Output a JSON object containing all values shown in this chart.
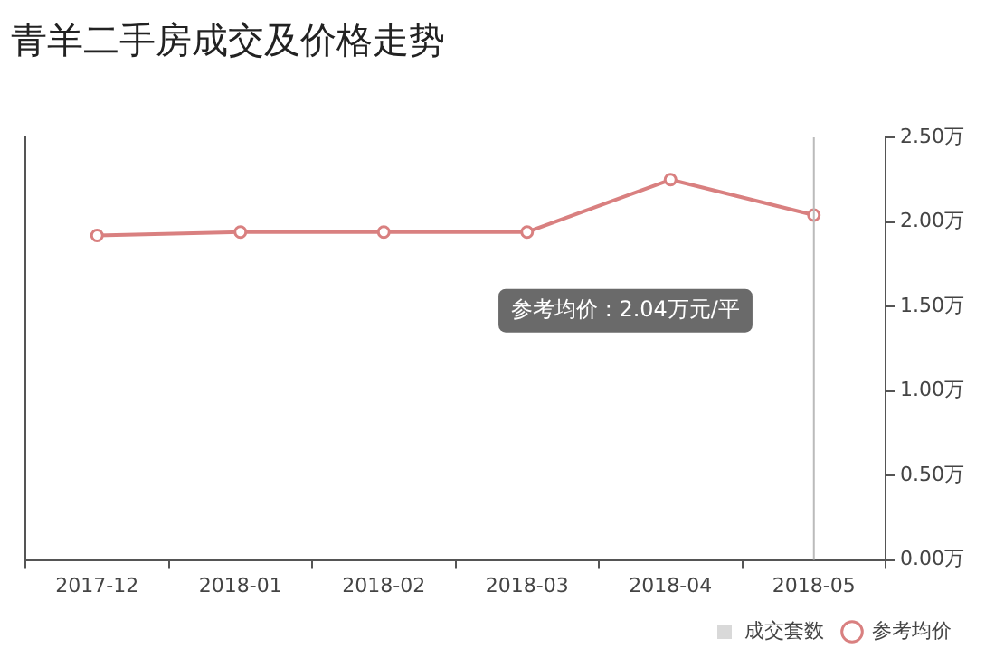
{
  "chart_data": {
    "type": "line",
    "title": "青羊二手房成交及价格走势",
    "categories": [
      "2017-12",
      "2018-01",
      "2018-02",
      "2018-03",
      "2018-04",
      "2018-05"
    ],
    "series": [
      {
        "name": "成交套数",
        "type": "bar",
        "color": "#d9d9d9",
        "values": [
          null,
          null,
          null,
          null,
          null,
          null
        ]
      },
      {
        "name": "参考均价",
        "axis": "y2",
        "color": "#d98080",
        "values": [
          1.92,
          1.94,
          1.94,
          1.94,
          2.25,
          2.04
        ]
      }
    ],
    "y2lim": [
      0,
      2.5
    ],
    "y2ticks": [
      {
        "value": 0,
        "label": "0.00万"
      },
      {
        "value": 0.5,
        "label": "0.50万"
      },
      {
        "value": 1,
        "label": "1.00万"
      },
      {
        "value": 1.5,
        "label": "1.50万"
      },
      {
        "value": 2,
        "label": "2.00万"
      },
      {
        "value": 2.5,
        "label": "2.50万"
      }
    ],
    "ref_lines": [
      {
        "axis": "x",
        "value": "2018-05",
        "color": "#bbbbbb"
      }
    ],
    "annotations": [
      "参考均价 : 2.04万元/平"
    ],
    "marker": "circle",
    "grid": false,
    "legend": "bottom right"
  }
}
